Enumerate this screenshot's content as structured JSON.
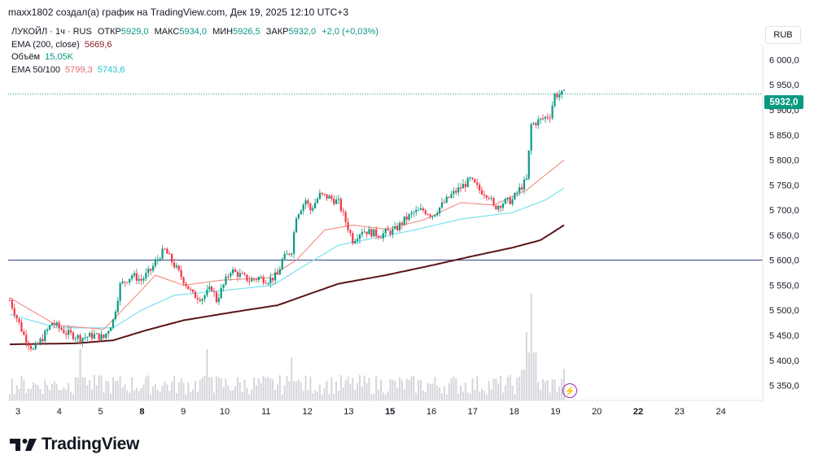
{
  "header": {
    "text": "maxx1802 создал(а) график на TradingView.com, Дек 19, 2025 12:10 UTC+3"
  },
  "legend": {
    "title": "ЛУКОЙЛ · 1ч · RUS",
    "open_label": "ОТКР",
    "open": "5929,0",
    "high_label": "МАКС",
    "high": "5934,0",
    "low_label": "МИН",
    "low": "5926,5",
    "close_label": "ЗАКР",
    "close": "5932,0",
    "change": "+2,0 (+0,03%)",
    "ema200_label": "EMA (200, close)",
    "ema200_value": "5669,6",
    "volume_label": "Объём",
    "volume_value": "15,05K",
    "ema_label": "EMA 50/100",
    "ema50_value": "5799,3",
    "ema100_value": "5743,6"
  },
  "currency_button": "RUB",
  "current_price_tag": "5932,0",
  "brand": {
    "name": "TradingView"
  },
  "colors": {
    "up": "#089981",
    "down": "#f23645",
    "ema50": "#f28b82",
    "ema100": "#7fe5f0",
    "ema200": "#5d1417",
    "hline": "#2a3e78",
    "volume": "#b2b5be"
  },
  "chart_data": {
    "type": "candlestick",
    "ylim": [
      5320,
      6030
    ],
    "y_ticks": [
      5350,
      5400,
      5450,
      5500,
      5550,
      5600,
      5650,
      5700,
      5750,
      5800,
      5850,
      5900,
      5950,
      6000
    ],
    "y_tick_labels": [
      "5 350,0",
      "5 400,0",
      "5 450,0",
      "5 500,0",
      "5 550,0",
      "5 600,0",
      "5 650,0",
      "5 700,0",
      "5 750,0",
      "5 800,0",
      "5 850,0",
      "5 900,0",
      "5 950,0",
      "6 000,0"
    ],
    "x_ticks": [
      "3",
      "4",
      "5",
      "8",
      "9",
      "10",
      "11",
      "12",
      "13",
      "15",
      "16",
      "17",
      "18",
      "19",
      "20",
      "22",
      "23",
      "24"
    ],
    "x_ticks_bold": [
      "8",
      "15",
      "22"
    ],
    "horizontal_line": 5600,
    "current_price": 5932,
    "price_anchors": [
      [
        0,
        5520
      ],
      [
        3,
        5485
      ],
      [
        6,
        5450
      ],
      [
        10,
        5420
      ],
      [
        14,
        5445
      ],
      [
        18,
        5475
      ],
      [
        24,
        5455
      ],
      [
        30,
        5445
      ],
      [
        36,
        5450
      ],
      [
        40,
        5445
      ],
      [
        44,
        5480
      ],
      [
        47,
        5550
      ],
      [
        52,
        5570
      ],
      [
        56,
        5560
      ],
      [
        60,
        5580
      ],
      [
        64,
        5610
      ],
      [
        66,
        5620
      ],
      [
        70,
        5590
      ],
      [
        74,
        5560
      ],
      [
        78,
        5530
      ],
      [
        82,
        5525
      ],
      [
        86,
        5545
      ],
      [
        88,
        5520
      ],
      [
        92,
        5560
      ],
      [
        94,
        5580
      ],
      [
        98,
        5570
      ],
      [
        102,
        5560
      ],
      [
        106,
        5565
      ],
      [
        110,
        5560
      ],
      [
        114,
        5570
      ],
      [
        116,
        5600
      ],
      [
        120,
        5620
      ],
      [
        122,
        5690
      ],
      [
        126,
        5720
      ],
      [
        128,
        5700
      ],
      [
        132,
        5730
      ],
      [
        136,
        5725
      ],
      [
        140,
        5715
      ],
      [
        142,
        5690
      ],
      [
        146,
        5640
      ],
      [
        150,
        5660
      ],
      [
        154,
        5655
      ],
      [
        158,
        5650
      ],
      [
        160,
        5655
      ],
      [
        164,
        5660
      ],
      [
        168,
        5680
      ],
      [
        172,
        5695
      ],
      [
        176,
        5700
      ],
      [
        180,
        5690
      ],
      [
        184,
        5710
      ],
      [
        188,
        5730
      ],
      [
        192,
        5745
      ],
      [
        196,
        5760
      ],
      [
        200,
        5740
      ],
      [
        204,
        5730
      ],
      [
        206,
        5705
      ],
      [
        210,
        5715
      ],
      [
        214,
        5720
      ],
      [
        216,
        5735
      ],
      [
        220,
        5760
      ],
      [
        222,
        5870
      ],
      [
        226,
        5880
      ],
      [
        230,
        5890
      ],
      [
        232,
        5930
      ],
      [
        236,
        5932
      ]
    ],
    "volume_range": [
      0,
      8000
    ],
    "volume_seed": 7,
    "volume_bursts": [
      [
        222,
        7500
      ],
      [
        236,
        2200
      ],
      [
        220,
        4800
      ],
      [
        30,
        3600
      ],
      [
        84,
        3600
      ],
      [
        120,
        3000
      ]
    ],
    "ema50_anchors": [
      [
        0,
        5525
      ],
      [
        20,
        5470
      ],
      [
        40,
        5462
      ],
      [
        52,
        5520
      ],
      [
        62,
        5570
      ],
      [
        74,
        5550
      ],
      [
        90,
        5560
      ],
      [
        110,
        5565
      ],
      [
        122,
        5600
      ],
      [
        134,
        5660
      ],
      [
        146,
        5670
      ],
      [
        160,
        5662
      ],
      [
        176,
        5680
      ],
      [
        192,
        5715
      ],
      [
        206,
        5710
      ],
      [
        220,
        5740
      ],
      [
        236,
        5800
      ]
    ],
    "ema100_anchors": [
      [
        0,
        5492
      ],
      [
        20,
        5465
      ],
      [
        44,
        5465
      ],
      [
        56,
        5500
      ],
      [
        70,
        5530
      ],
      [
        92,
        5540
      ],
      [
        112,
        5550
      ],
      [
        124,
        5585
      ],
      [
        140,
        5630
      ],
      [
        156,
        5645
      ],
      [
        172,
        5660
      ],
      [
        192,
        5682
      ],
      [
        214,
        5695
      ],
      [
        228,
        5720
      ],
      [
        236,
        5744
      ]
    ],
    "ema200_anchors": [
      [
        0,
        5432
      ],
      [
        28,
        5434
      ],
      [
        44,
        5440
      ],
      [
        58,
        5460
      ],
      [
        74,
        5480
      ],
      [
        96,
        5497
      ],
      [
        114,
        5510
      ],
      [
        126,
        5530
      ],
      [
        140,
        5553
      ],
      [
        160,
        5570
      ],
      [
        180,
        5590
      ],
      [
        196,
        5607
      ],
      [
        214,
        5625
      ],
      [
        226,
        5640
      ],
      [
        236,
        5670
      ]
    ]
  }
}
